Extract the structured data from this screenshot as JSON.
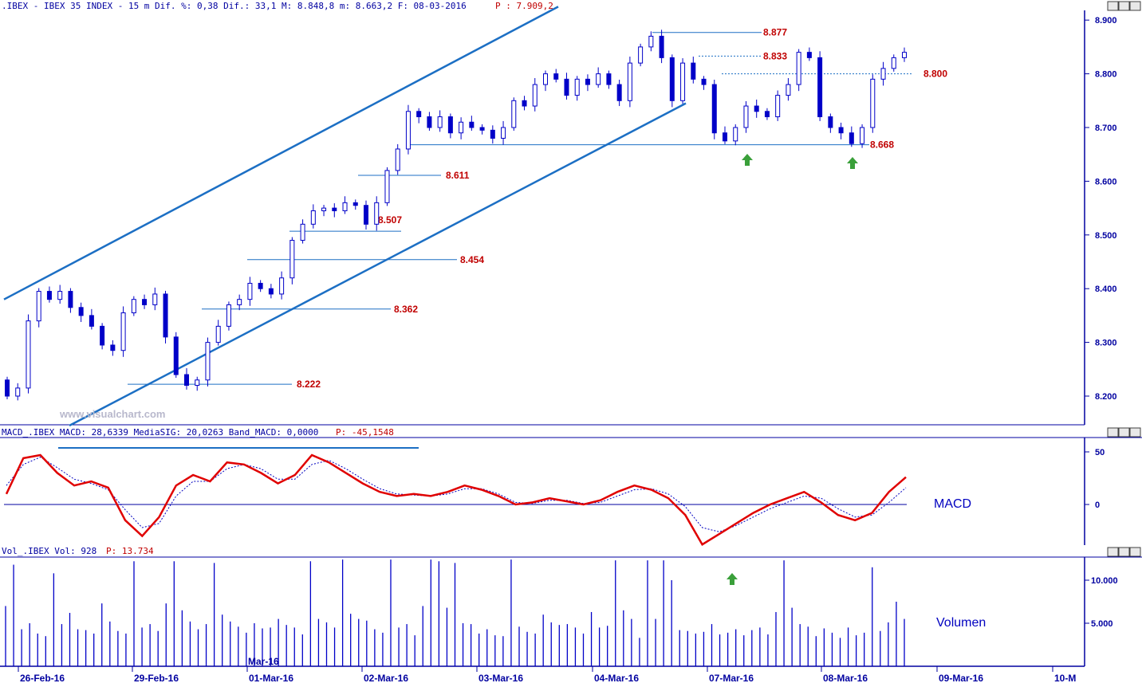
{
  "header": {
    "price": {
      "text": ".IBEX - IBEX 35 INDEX -  15 m Dif. %: 0,38 Dif.: 33,1 M: 8.848,8 m: 8.663,2 F: 08-03-2016",
      "p_text": "P : 7.909,2"
    },
    "macd": {
      "text": "MACD_.IBEX MACD: 28,6339 MediaSIG: 20,0263 Band_MACD: 0,0000",
      "p_text": "P: -45,1548"
    },
    "volume": {
      "text": "Vol_.IBEX Vol: 928",
      "p_text": "P: 13.734"
    }
  },
  "watermark": "www.visualchart.com",
  "panel_labels": {
    "macd": "MACD",
    "volume": "Volumen"
  },
  "window_buttons": [
    "minimize",
    "maximize",
    "close"
  ],
  "colors": {
    "axis": "#0000a0",
    "candles": "#0000c8",
    "channel": "#1c6fc4",
    "levels": "#1c6fc4",
    "level_labels": "#c00000",
    "macd_line": "#e00000",
    "signal_line": "#0000c0",
    "arrow": "#3aa03a"
  },
  "chart_data": [
    {
      "type": "candlestick",
      "series": [
        {
          "name": "IBEX 35 INDEX"
        }
      ],
      "y_axis": {
        "ticks": [
          "8.200",
          "8.300",
          "8.400",
          "8.500",
          "8.600",
          "8.700",
          "8.800",
          "8.900"
        ],
        "range": [
          8140,
          8925
        ]
      },
      "x_axis": {
        "ticks": [
          "26-Feb-16",
          "29-Feb-16",
          "01-Mar-16",
          "02-Mar-16",
          "03-Mar-16",
          "04-Mar-16",
          "07-Mar-16",
          "08-Mar-16",
          "09-Mar-16",
          "10-M"
        ],
        "month_label": "Mar-16"
      },
      "closes": [
        8200,
        8215,
        8340,
        8395,
        8380,
        8395,
        8365,
        8350,
        8330,
        8295,
        8285,
        8355,
        8380,
        8370,
        8390,
        8310,
        8240,
        8220,
        8230,
        8300,
        8330,
        8370,
        8380,
        8410,
        8400,
        8390,
        8420,
        8490,
        8520,
        8545,
        8550,
        8545,
        8560,
        8555,
        8520,
        8560,
        8620,
        8660,
        8730,
        8720,
        8700,
        8720,
        8690,
        8710,
        8700,
        8695,
        8680,
        8700,
        8750,
        8740,
        8780,
        8800,
        8790,
        8760,
        8790,
        8780,
        8800,
        8780,
        8750,
        8820,
        8850,
        8870,
        8830,
        8750,
        8820,
        8790,
        8780,
        8690,
        8675,
        8700,
        8740,
        8730,
        8720,
        8760,
        8780,
        8840,
        8830,
        8720,
        8700,
        8690,
        8670,
        8700,
        8790,
        8810,
        8830,
        8840
      ],
      "levels": [
        {
          "label": "8.877",
          "value": 8877,
          "style": "solid"
        },
        {
          "label": "8.833",
          "value": 8833,
          "style": "dotted"
        },
        {
          "label": "8.800",
          "value": 8800,
          "style": "dotted"
        },
        {
          "label": "8.668",
          "value": 8668,
          "style": "solid"
        },
        {
          "label": "8.611",
          "value": 8611,
          "style": "solid"
        },
        {
          "label": "8.507",
          "value": 8507,
          "style": "solid"
        },
        {
          "label": "8.454",
          "value": 8454,
          "style": "solid"
        },
        {
          "label": "8.362",
          "value": 8362,
          "style": "solid"
        },
        {
          "label": "8.222",
          "value": 8222,
          "style": "solid"
        }
      ],
      "channel": {
        "upper": {
          "from_value": 8380,
          "to_value": 8925
        },
        "lower": {
          "from_value": 8140,
          "to_value": 8745
        }
      },
      "markers": [
        "up-arrow near 8.668 (07-Mar-16)",
        "up-arrow near 8.668 (08-Mar-16)"
      ]
    },
    {
      "type": "line",
      "title": "MACD",
      "y_axis": {
        "ticks": [
          "50",
          "0"
        ]
      },
      "series": [
        {
          "name": "MACD",
          "values": [
            10,
            44,
            47,
            30,
            18,
            22,
            16,
            -15,
            -30,
            -12,
            18,
            28,
            22,
            40,
            38,
            30,
            20,
            28,
            47,
            40,
            30,
            20,
            12,
            8,
            10,
            8,
            12,
            18,
            14,
            8,
            0,
            2,
            6,
            3,
            0,
            4,
            12,
            18,
            14,
            6,
            -10,
            -38,
            -28,
            -18,
            -8,
            0,
            6,
            12,
            2,
            -10,
            -15,
            -8,
            12,
            26
          ]
        },
        {
          "name": "MediaSIG",
          "values": [
            18,
            38,
            45,
            35,
            24,
            20,
            14,
            -5,
            -22,
            -18,
            8,
            22,
            22,
            34,
            38,
            34,
            24,
            24,
            38,
            42,
            34,
            24,
            15,
            10,
            9,
            8,
            10,
            15,
            15,
            10,
            2,
            1,
            4,
            4,
            1,
            2,
            8,
            14,
            15,
            10,
            -2,
            -22,
            -26,
            -20,
            -12,
            -4,
            2,
            8,
            6,
            -4,
            -12,
            -10,
            2,
            16
          ]
        }
      ],
      "band": 0,
      "annotation": "MACD top line"
    },
    {
      "type": "bar",
      "title": "Volumen",
      "y_axis": {
        "ticks": [
          "10.000",
          "5.000"
        ]
      },
      "series": [
        {
          "name": "Vol"
        }
      ],
      "values": [
        7000,
        11800,
        4300,
        5000,
        3800,
        3500,
        10800,
        4900,
        6200,
        4300,
        4200,
        3800,
        7300,
        5200,
        4100,
        3800,
        12200,
        4500,
        4900,
        4100,
        7300,
        12200,
        6500,
        5200,
        4300,
        4900,
        12000,
        6000,
        5200,
        4600,
        3900,
        5000,
        4400,
        4500,
        5500,
        4800,
        4500,
        3700,
        12200,
        5500,
        5100,
        4500,
        12400,
        6100,
        5500,
        5300,
        4300,
        3900,
        12400,
        4500,
        4900,
        3600,
        7000,
        12400,
        12200,
        6800,
        12000,
        5000,
        4900,
        3800,
        4300,
        3600,
        3500,
        12400,
        4600,
        4000,
        3800,
        6000,
        5100,
        4800,
        4900,
        4500,
        3800,
        6300,
        4500,
        4700,
        12300,
        6500,
        5500,
        3300,
        12300,
        5500,
        12300,
        10000,
        4200,
        4100,
        3800,
        4000,
        4900,
        3700,
        3900,
        4300,
        3600,
        4200,
        4500,
        3700,
        6300,
        12300,
        6800,
        4900,
        4600,
        3500,
        4400,
        3900,
        3300,
        4500,
        3600,
        3900,
        11500,
        4100,
        5100,
        7500,
        5500
      ]
    }
  ]
}
